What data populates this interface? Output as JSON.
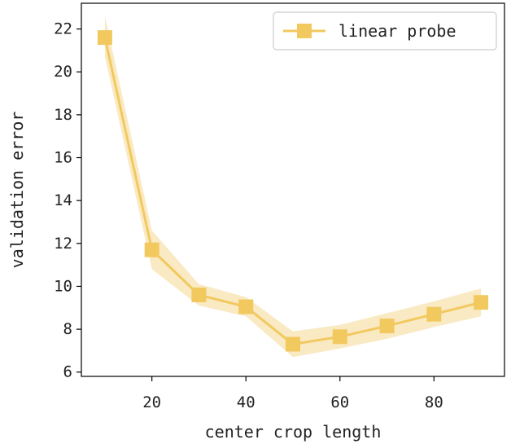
{
  "chart_data": {
    "type": "line",
    "title": "",
    "xlabel": "center crop length",
    "ylabel": "validation error",
    "xlim": [
      5,
      95
    ],
    "ylim": [
      5.8,
      23.2
    ],
    "xticks": [
      20,
      40,
      60,
      80
    ],
    "yticks": [
      6,
      8,
      10,
      12,
      14,
      16,
      18,
      20,
      22
    ],
    "grid": false,
    "legend": {
      "position": "top-right"
    },
    "colors": {
      "series": "#f2c95f",
      "band": "#f7e3b0",
      "axis": "#000000"
    },
    "series": [
      {
        "name": "linear probe",
        "marker": "square",
        "x": [
          10,
          20,
          30,
          40,
          50,
          60,
          70,
          80,
          90
        ],
        "y": [
          21.6,
          11.7,
          9.6,
          9.05,
          7.3,
          7.65,
          8.15,
          8.7,
          9.25
        ],
        "lower": [
          20.7,
          10.8,
          9.1,
          8.6,
          6.7,
          7.1,
          7.55,
          8.1,
          8.6
        ],
        "upper": [
          22.6,
          12.6,
          10.1,
          9.5,
          7.9,
          8.2,
          8.75,
          9.3,
          9.9
        ]
      }
    ]
  }
}
